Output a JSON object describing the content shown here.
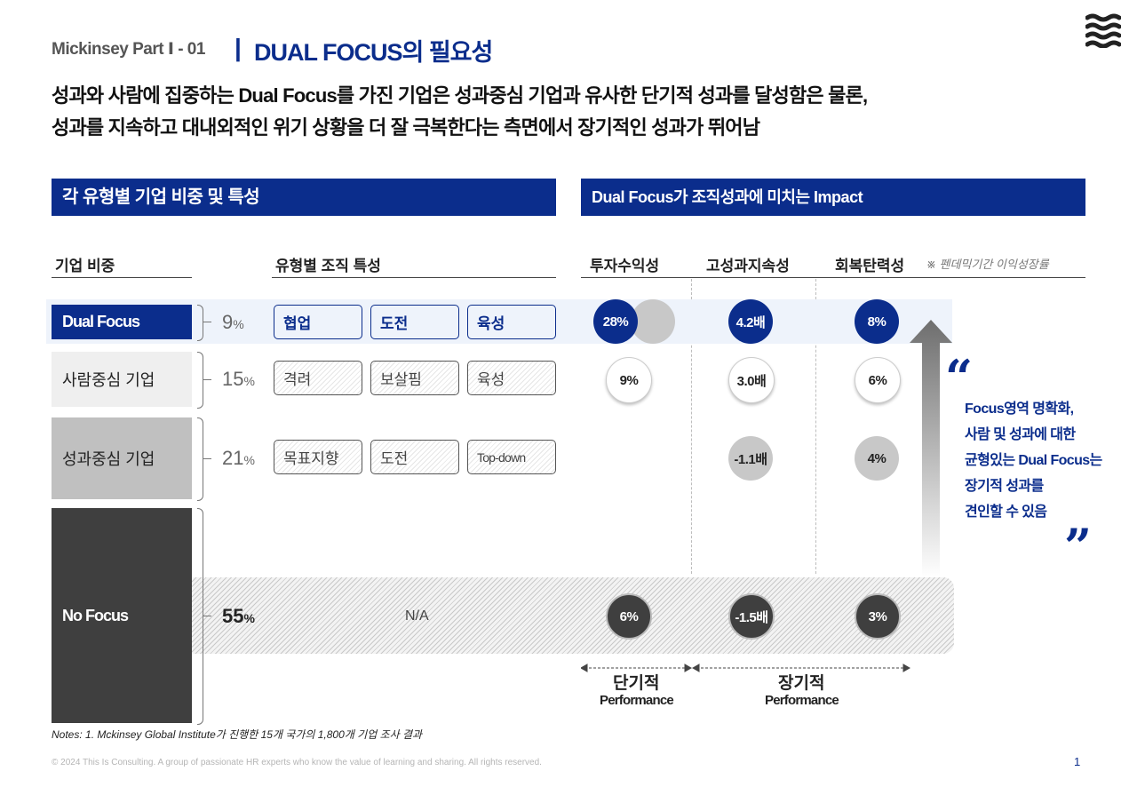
{
  "header": {
    "subtitle": "Mickinsey Part Ⅰ - 01",
    "divider": "|",
    "title": "DUAL FOCUS의 필요성"
  },
  "headline": {
    "line1": "성과와 사람에 집중하는 Dual Focus를 가진 기업은 성과중심 기업과 유사한 단기적 성과를 달성함은 물론,",
    "line2": "성과를 지속하고 대내외적인 위기 상황을 더 잘 극복한다는 측면에서 장기적인 성과가 뛰어남"
  },
  "left_section": {
    "bar_title": "각 유형별 기업 비중 및 특성",
    "col_company": "기업 비중",
    "col_traits": "유형별 조직 특성"
  },
  "right_section": {
    "bar_title": "Dual Focus가 조직성과에 미치는 Impact",
    "col_roi": "투자수익성",
    "col_sustain": "고성과지속성",
    "col_resilience": "회복탄력성",
    "col_note": "※ 펜데믹기간 이익성장률"
  },
  "rows": [
    {
      "name": "Dual Focus",
      "pct": "9",
      "unit": "%",
      "traits": [
        "협업",
        "도전",
        "육성"
      ],
      "roi": "28%",
      "sustain": "4.2배",
      "resilience": "8%"
    },
    {
      "name": "사람중심 기업",
      "pct": "15",
      "unit": "%",
      "traits": [
        "격려",
        "보살핌",
        "육성"
      ],
      "roi": "9%",
      "sustain": "3.0배",
      "resilience": "6%"
    },
    {
      "name": "성과중심 기업",
      "pct": "21",
      "unit": "%",
      "traits": [
        "목표지향",
        "도전",
        "Top-down"
      ],
      "sustain": "-1.1배",
      "resilience": "4%"
    },
    {
      "name": "No Focus",
      "pct": "55",
      "unit": "%",
      "traits_text": "N/A",
      "roi": "6%",
      "sustain": "-1.5배",
      "resilience": "3%"
    }
  ],
  "quote": {
    "open": "“",
    "lines": [
      "Focus영역 명확화,",
      "사람 및 성과에 대한",
      "균형있는 Dual Focus는",
      "장기적 성과를",
      "견인할 수 있음"
    ],
    "close": "”"
  },
  "performance": {
    "short_label": "단기적",
    "long_label": "장기적",
    "sub": "Performance"
  },
  "notes": "Notes: 1. Mckinsey Global Institute가 진행한 15개 국가의 1,800개 기업 조사 결과",
  "footer": {
    "copyright": "© 2024 This Is Consulting. A group of passionate HR experts who know the value of learning and sharing. All rights reserved.",
    "page": "1"
  },
  "colors": {
    "navy": "#0b2d8c",
    "dark": "#3f3f3f",
    "light_gray": "#efefef",
    "mid_gray": "#c0c0c0"
  }
}
